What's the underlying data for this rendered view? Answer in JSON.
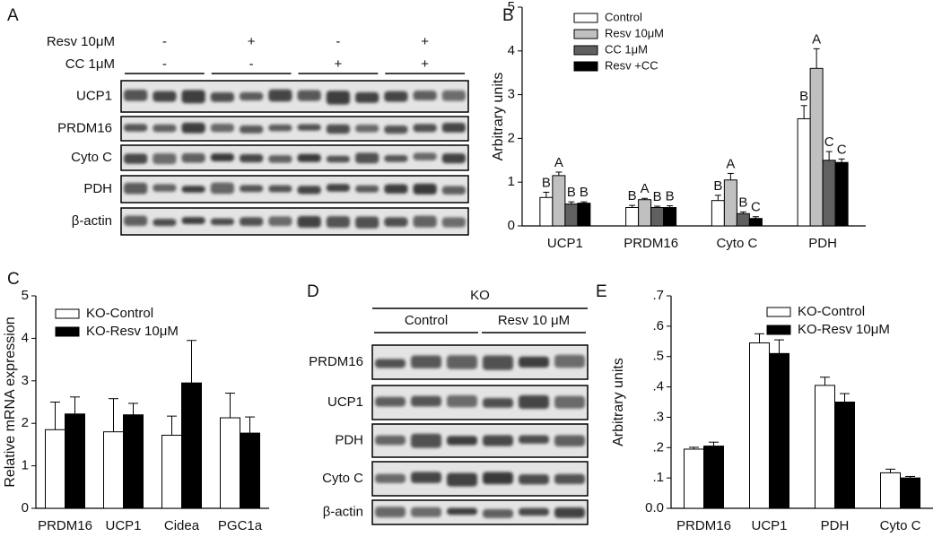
{
  "panels": [
    "A",
    "B",
    "C",
    "D",
    "E"
  ],
  "blot_a": {
    "treatments": [
      {
        "label": "Resv 10μM",
        "signs": [
          "-",
          "+",
          "-",
          "+"
        ]
      },
      {
        "label": "CC 1μM",
        "signs": [
          "-",
          "-",
          "+",
          "+"
        ]
      }
    ],
    "bands": [
      "UCP1",
      "PRDM16",
      "Cyto C",
      "PDH",
      "β-actin"
    ]
  },
  "blot_d": {
    "group": "KO",
    "conditions": [
      "Control",
      "Resv 10 μM"
    ],
    "bands": [
      "PRDM16",
      "UCP1",
      "PDH",
      "Cyto C",
      "β-actin"
    ]
  },
  "chart_data": [
    {
      "type": "bar",
      "ylabel": "Arbitrary units",
      "categories": [
        "UCP1",
        "PRDM16",
        "Cyto C",
        "PDH"
      ],
      "series": [
        {
          "name": "Control",
          "color": "#ffffff",
          "values": [
            0.65,
            0.42,
            0.58,
            2.45
          ],
          "errors": [
            0.12,
            0.05,
            0.12,
            0.3
          ],
          "letters": [
            "B",
            "B",
            "B",
            "B"
          ]
        },
        {
          "name": "Resv 10μM",
          "color": "#c0c0c0",
          "values": [
            1.15,
            0.6,
            1.05,
            3.6
          ],
          "errors": [
            0.08,
            0.03,
            0.15,
            0.45
          ],
          "letters": [
            "A",
            "A",
            "A",
            "A"
          ]
        },
        {
          "name": "CC 1μM",
          "color": "#606060",
          "values": [
            0.5,
            0.42,
            0.28,
            1.5
          ],
          "errors": [
            0.05,
            0.03,
            0.04,
            0.2
          ],
          "letters": [
            "B",
            "B",
            "B",
            "C"
          ]
        },
        {
          "name": "Resv +CC",
          "color": "#000000",
          "values": [
            0.52,
            0.42,
            0.17,
            1.45
          ],
          "errors": [
            0.03,
            0.04,
            0.04,
            0.08
          ],
          "letters": [
            "B",
            "B",
            "C",
            "C"
          ]
        }
      ],
      "ylim": [
        0,
        5
      ],
      "yticks": [
        0,
        1,
        2,
        3,
        4,
        5
      ]
    },
    {
      "type": "bar",
      "ylabel": "Relative mRNA expression",
      "categories": [
        "PRDM16",
        "UCP1",
        "Cidea",
        "PGC1a"
      ],
      "series": [
        {
          "name": "KO-Control",
          "color": "#ffffff",
          "values": [
            1.85,
            1.8,
            1.72,
            2.13
          ],
          "errors": [
            0.65,
            0.78,
            0.45,
            0.58
          ]
        },
        {
          "name": "KO-Resv 10μM",
          "color": "#000000",
          "values": [
            2.22,
            2.2,
            2.95,
            1.77
          ],
          "errors": [
            0.4,
            0.27,
            1.0,
            0.38
          ]
        }
      ],
      "ylim": [
        0,
        5
      ],
      "yticks": [
        0,
        1,
        2,
        3,
        4,
        5
      ]
    },
    {
      "type": "bar",
      "ylabel": "Arbitrary units",
      "categories": [
        "PRDM16",
        "UCP1",
        "PDH",
        "Cyto C"
      ],
      "series": [
        {
          "name": "KO-Control",
          "color": "#ffffff",
          "values": [
            0.195,
            0.545,
            0.405,
            0.117
          ],
          "errors": [
            0.006,
            0.03,
            0.027,
            0.012
          ]
        },
        {
          "name": "KO-Resv 10μM",
          "color": "#000000",
          "values": [
            0.205,
            0.51,
            0.35,
            0.1
          ],
          "errors": [
            0.013,
            0.045,
            0.028,
            0.005
          ]
        }
      ],
      "ylim": [
        0,
        0.7
      ],
      "yticks": [
        {
          "value": 0,
          "label": "0.0"
        },
        {
          "value": 0.1,
          "label": ".1"
        },
        {
          "value": 0.2,
          "label": ".2"
        },
        {
          "value": 0.3,
          "label": ".3"
        },
        {
          "value": 0.4,
          "label": ".4"
        },
        {
          "value": 0.5,
          "label": ".5"
        },
        {
          "value": 0.6,
          "label": ".6"
        },
        {
          "value": 0.7,
          "label": ".7"
        }
      ]
    }
  ]
}
